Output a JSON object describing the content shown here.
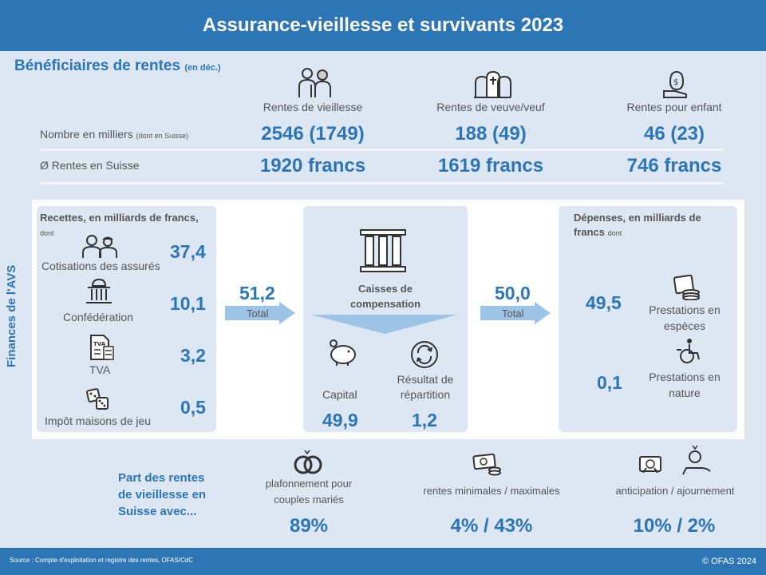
{
  "header": {
    "title": "Assurance-vieillesse et survivants 2023"
  },
  "beneficiaries": {
    "title": "Bénéficiaires de rentes",
    "title_note": "(en déc.)",
    "columns": [
      {
        "label": "Rentes de vieillesse",
        "count": "2546 (1749)",
        "amount": "1920 francs",
        "icon": "elderly-couple-icon"
      },
      {
        "label": "Rentes de veuve/veuf",
        "count": "188 (49)",
        "amount": "1619 francs",
        "icon": "gravestones-icon"
      },
      {
        "label": "Rentes pour enfant",
        "count": "46 (23)",
        "amount": "746 francs",
        "icon": "hand-money-bag-icon"
      }
    ],
    "row_count_label": "Nombre  en milliers",
    "row_count_note": "(dont en Suisse)",
    "row_amount_label": "Ø Rentes en Suisse"
  },
  "finances": {
    "side_label": "Finances de l'AVS",
    "income": {
      "title": "Recettes, en milliards de francs,",
      "title_note": "dont",
      "items": [
        {
          "label": "Cotisations des assurés",
          "value": "37,4",
          "icon": "workers-icon"
        },
        {
          "label": "Confédération",
          "value": "10,1",
          "icon": "federal-building-icon"
        },
        {
          "label": "TVA",
          "value": "3,2",
          "icon": "tva-document-icon"
        },
        {
          "label": "Impôt  maisons de jeu",
          "value": "0,5",
          "icon": "dice-icon"
        }
      ]
    },
    "income_total": {
      "value": "51,2",
      "label": "Total"
    },
    "center": {
      "title": "Caisses de compensation",
      "capital_label": "Capital",
      "capital_value": "49,9",
      "result_label": "Résultat de répartition",
      "result_value": "1,2"
    },
    "expense_total": {
      "value": "50,0",
      "label": "Total"
    },
    "expenses": {
      "title": "Dépenses, en milliards de francs",
      "title_note": "dont",
      "items": [
        {
          "label": "Prestations en espèces",
          "value": "49,5",
          "icon": "coins-stack-icon"
        },
        {
          "label": "Prestations en nature",
          "value": "0,1",
          "icon": "wheelchair-icon"
        }
      ]
    }
  },
  "share": {
    "title": "Part des rentes de vieillesse en Suisse avec...",
    "items": [
      {
        "label": "plafonnement pour couples mariés",
        "value": "89%",
        "icon": "rings-icon"
      },
      {
        "label": "rentes minimales / maximales",
        "value": "4% / 43%",
        "icon": "banknotes-coins-icon"
      },
      {
        "label": "anticipation / ajournement",
        "value": "10% / 2%",
        "icon": "calendar-coin-icon"
      }
    ]
  },
  "footer": {
    "source": "Source : Compte d'exploitation  et registre  des rentes,  OFAS/CdC",
    "copyright": "© OFAS 2024"
  },
  "colors": {
    "brand": "#2e75b6",
    "panel": "#dce7f3",
    "arrow": "#9dc3e6"
  }
}
